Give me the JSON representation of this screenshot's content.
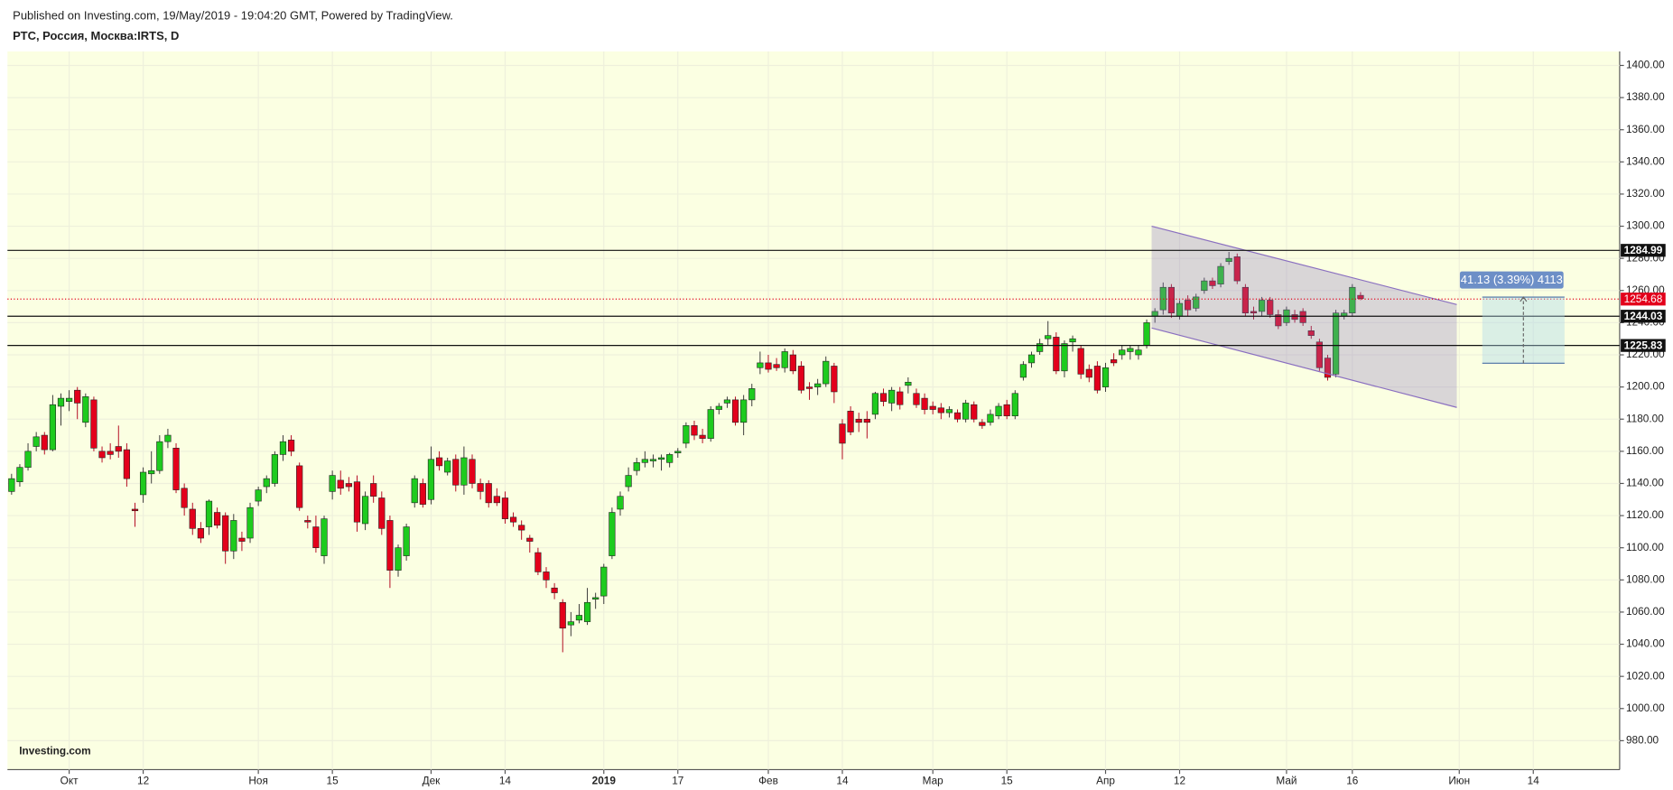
{
  "header": {
    "title": "Published on Investing.com, 19/May/2019 - 19:04:20 GMT, Powered by TradingView.",
    "symbol": "РТС, Россия, Москва:IRTS, D"
  },
  "chart_data": {
    "type": "candlestick",
    "logo": "Investing.com",
    "up_color": "#1ecb1e",
    "down_color": "#e3001b",
    "categories": [
      null,
      null,
      null,
      null,
      null,
      null,
      null,
      "Окт",
      null,
      null,
      null,
      null,
      null,
      null,
      null,
      null,
      "12",
      null,
      null,
      null,
      null,
      null,
      null,
      null,
      null,
      null,
      null,
      null,
      null,
      null,
      "Ноя",
      null,
      null,
      null,
      null,
      null,
      null,
      null,
      null,
      "15",
      null,
      null,
      null,
      null,
      null,
      null,
      null,
      null,
      null,
      null,
      null,
      "Дек",
      null,
      null,
      null,
      null,
      null,
      null,
      null,
      null,
      "14",
      null,
      null,
      null,
      null,
      null,
      null,
      null,
      null,
      null,
      null,
      null,
      "2019",
      null,
      null,
      null,
      null,
      null,
      null,
      null,
      null,
      "17",
      null,
      null,
      null,
      null,
      null,
      null,
      null,
      null,
      null,
      null,
      "Фев",
      null,
      null,
      null,
      null,
      null,
      null,
      null,
      null,
      "14",
      null,
      null,
      null,
      null,
      null,
      null,
      null,
      null,
      null,
      null,
      "Мар",
      null,
      null,
      null,
      null,
      null,
      null,
      null,
      null,
      "15",
      null,
      null,
      null,
      null,
      null,
      null,
      null,
      null,
      null,
      null,
      null,
      "Апр",
      null,
      null,
      null,
      null,
      null,
      null,
      null,
      null,
      "12",
      null,
      null,
      null,
      null,
      null,
      null,
      null,
      null,
      null,
      null,
      null,
      null,
      "Май",
      null,
      null,
      null,
      null,
      null,
      null,
      null,
      "16",
      null,
      null,
      null,
      null,
      null,
      null,
      null,
      null,
      null,
      null,
      null,
      null,
      "Июн",
      null,
      null,
      null,
      null,
      null,
      null,
      null,
      null,
      "14",
      null,
      null,
      null,
      null,
      null,
      null,
      null,
      null,
      null,
      null
    ],
    "open": [
      1135,
      1141,
      1150,
      1163,
      1170,
      1161,
      1188,
      1191,
      1198,
      1178,
      1192,
      1160,
      1160,
      1163,
      1161,
      1124,
      1133,
      1146,
      1148,
      1166,
      1162,
      1137,
      1124,
      1112,
      1113,
      1122,
      1120,
      1098,
      1106,
      1106,
      1129,
      1138,
      1140,
      1158,
      1167,
      1151,
      1117,
      1113,
      1095,
      1135,
      1142,
      1140,
      1141,
      1115,
      1140,
      1131,
      1117,
      1086,
      1095,
      1128,
      1140,
      1130,
      1156,
      1147,
      1155,
      1139,
      1155,
      1140,
      1140,
      1132,
      1131,
      1119,
      1114,
      1106,
      1097,
      1085,
      1075,
      1066,
      1052,
      1055,
      1054,
      1068,
      1070,
      1095,
      1124,
      1138,
      1148,
      1153,
      1154,
      1155,
      1153,
      1159,
      1165,
      1176,
      1170,
      1168,
      1186,
      1190,
      1192,
      1178,
      1192,
      1212,
      1215,
      1214,
      1212,
      1220,
      1213,
      1200,
      1200,
      1202,
      1213,
      1177,
      1185,
      1180,
      1180,
      1183,
      1196,
      1190,
      1197,
      1201,
      1196,
      1193,
      1188,
      1187,
      1184,
      1184,
      1180,
      1189,
      1178,
      1178,
      1182,
      1189,
      1182,
      1206,
      1215,
      1222,
      1230,
      1231,
      1210,
      1228,
      1224,
      1211,
      1213,
      1200,
      1217,
      1220,
      1222,
      1220,
      1226,
      1244,
      1248,
      1262,
      1244,
      1254,
      1249,
      1260,
      1266,
      1264,
      1278,
      1281,
      1262,
      1247,
      1247,
      1254,
      1245,
      1240,
      1245,
      1247,
      1235,
      1228,
      1218,
      1208,
      1244,
      1246,
      1257,
      null,
      null,
      null,
      null,
      null,
      null,
      null,
      null,
      null,
      null,
      null,
      null,
      null,
      null,
      null,
      null,
      null,
      null,
      null,
      null,
      null,
      null,
      null,
      null,
      null,
      null,
      null,
      null,
      null,
      null,
      null
    ],
    "high": [
      1146,
      1152,
      1165,
      1172,
      1172,
      1195,
      1196,
      1198,
      1200,
      1196,
      1194,
      1163,
      1165,
      1176,
      1165,
      1128,
      1150,
      1160,
      1170,
      1174,
      1165,
      1140,
      1128,
      1116,
      1130,
      1125,
      1122,
      1121,
      1110,
      1128,
      1138,
      1145,
      1160,
      1170,
      1170,
      1153,
      1120,
      1120,
      1120,
      1148,
      1148,
      1144,
      1145,
      1135,
      1145,
      1135,
      1120,
      1102,
      1115,
      1145,
      1143,
      1163,
      1160,
      1156,
      1158,
      1163,
      1158,
      1143,
      1142,
      1137,
      1135,
      1122,
      1117,
      1108,
      1100,
      1088,
      1078,
      1068,
      1060,
      1065,
      1075,
      1072,
      1090,
      1125,
      1135,
      1150,
      1156,
      1160,
      1158,
      1158,
      1159,
      1162,
      1178,
      1179,
      1174,
      1188,
      1190,
      1194,
      1194,
      1195,
      1202,
      1222,
      1220,
      1218,
      1224,
      1223,
      1216,
      1203,
      1205,
      1219,
      1215,
      1180,
      1188,
      1184,
      1185,
      1197,
      1199,
      1200,
      1200,
      1206,
      1199,
      1196,
      1191,
      1190,
      1188,
      1186,
      1192,
      1191,
      1180,
      1186,
      1190,
      1192,
      1198,
      1216,
      1222,
      1230,
      1241,
      1234,
      1229,
      1232,
      1226,
      1214,
      1216,
      1215,
      1221,
      1226,
      1226,
      1226,
      1242,
      1249,
      1265,
      1264,
      1254,
      1257,
      1258,
      1268,
      1268,
      1277,
      1284,
      1283,
      1264,
      1250,
      1256,
      1256,
      1248,
      1250,
      1248,
      1249,
      1238,
      1230,
      1220,
      1248,
      1248,
      1264,
      1259,
      null,
      null,
      null,
      null,
      null,
      null,
      null,
      null,
      null,
      null,
      null,
      null,
      null,
      null,
      null,
      null,
      null,
      null,
      null,
      null,
      null,
      null,
      null,
      null,
      null,
      null,
      null,
      null,
      null,
      null,
      null
    ],
    "low": [
      1133,
      1138,
      1148,
      1160,
      1158,
      1160,
      1176,
      1185,
      1180,
      1175,
      1160,
      1153,
      1155,
      1156,
      1138,
      1113,
      1128,
      1140,
      1146,
      1162,
      1134,
      1120,
      1108,
      1103,
      1108,
      1112,
      1090,
      1093,
      1098,
      1103,
      1126,
      1134,
      1138,
      1154,
      1157,
      1123,
      1112,
      1097,
      1090,
      1130,
      1133,
      1135,
      1110,
      1111,
      1128,
      1108,
      1075,
      1082,
      1092,
      1125,
      1125,
      1127,
      1148,
      1145,
      1135,
      1133,
      1137,
      1130,
      1125,
      1126,
      1115,
      1113,
      1105,
      1097,
      1083,
      1075,
      1068,
      1035,
      1045,
      1053,
      1052,
      1062,
      1065,
      1093,
      1120,
      1135,
      1145,
      1150,
      1150,
      1148,
      1150,
      1156,
      1162,
      1167,
      1165,
      1166,
      1183,
      1187,
      1176,
      1170,
      1188,
      1208,
      1209,
      1210,
      1209,
      1208,
      1196,
      1192,
      1195,
      1200,
      1190,
      1155,
      1170,
      1172,
      1168,
      1180,
      1188,
      1185,
      1186,
      1196,
      1187,
      1183,
      1183,
      1180,
      1181,
      1178,
      1178,
      1178,
      1174,
      1176,
      1180,
      1180,
      1180,
      1204,
      1212,
      1220,
      1226,
      1208,
      1206,
      1222,
      1205,
      1203,
      1196,
      1197,
      1213,
      1217,
      1217,
      1217,
      1224,
      1240,
      1245,
      1243,
      1242,
      1244,
      1247,
      1258,
      1261,
      1262,
      1276,
      1264,
      1244,
      1242,
      1244,
      1243,
      1236,
      1238,
      1240,
      1238,
      1230,
      1210,
      1204,
      1206,
      1242,
      1244,
      1254,
      null,
      null,
      null,
      null,
      null,
      null,
      null,
      null,
      null,
      null,
      null,
      null,
      null,
      null,
      null,
      null,
      null,
      null,
      null,
      null,
      null,
      null,
      null,
      null,
      null,
      null,
      null,
      null,
      null,
      null,
      null
    ],
    "close": [
      1143,
      1150,
      1160,
      1169,
      1161,
      1189,
      1193,
      1193,
      1190,
      1194,
      1162,
      1156,
      1158,
      1160,
      1143,
      1123,
      1147,
      1148,
      1166,
      1170,
      1136,
      1125,
      1112,
      1106,
      1129,
      1114,
      1098,
      1117,
      1104,
      1125,
      1136,
      1143,
      1158,
      1166,
      1160,
      1125,
      1116,
      1100,
      1118,
      1145,
      1137,
      1138,
      1116,
      1132,
      1132,
      1112,
      1086,
      1100,
      1113,
      1143,
      1127,
      1155,
      1151,
      1154,
      1139,
      1156,
      1140,
      1135,
      1128,
      1128,
      1118,
      1116,
      1111,
      1104,
      1085,
      1080,
      1072,
      1050,
      1054,
      1058,
      1066,
      1069,
      1088,
      1122,
      1132,
      1145,
      1153,
      1155,
      1155,
      1156,
      1158,
      1160,
      1176,
      1170,
      1168,
      1186,
      1188,
      1192,
      1178,
      1192,
      1199,
      1215,
      1211,
      1212,
      1222,
      1210,
      1198,
      1199,
      1202,
      1216,
      1197,
      1165,
      1172,
      1178,
      1178,
      1196,
      1191,
      1198,
      1189,
      1203,
      1189,
      1186,
      1186,
      1184,
      1186,
      1180,
      1190,
      1180,
      1176,
      1183,
      1188,
      1182,
      1196,
      1214,
      1220,
      1227,
      1232,
      1210,
      1227,
      1230,
      1208,
      1206,
      1198,
      1212,
      1215,
      1223,
      1224,
      1223,
      1240,
      1247,
      1262,
      1246,
      1252,
      1248,
      1256,
      1266,
      1263,
      1275,
      1280,
      1266,
      1246,
      1246,
      1254,
      1245,
      1238,
      1248,
      1242,
      1240,
      1232,
      1212,
      1206,
      1246,
      1246,
      1262,
      1255,
      null,
      null,
      null,
      null,
      null,
      null,
      null,
      null,
      null,
      null,
      null,
      null,
      null,
      null,
      null,
      null,
      null,
      null,
      null,
      null,
      null,
      null,
      null,
      null,
      null,
      null,
      null,
      null,
      null,
      null,
      null
    ],
    "ylim": [
      962,
      1408.7
    ],
    "yticks": [
      {
        "value": 980,
        "label": "980.00"
      },
      {
        "value": 1000,
        "label": "1000.00"
      },
      {
        "value": 1020,
        "label": "1020.00"
      },
      {
        "value": 1040,
        "label": "1040.00"
      },
      {
        "value": 1060,
        "label": "1060.00"
      },
      {
        "value": 1080,
        "label": "1080.00"
      },
      {
        "value": 1100,
        "label": "1100.00"
      },
      {
        "value": 1120,
        "label": "1120.00"
      },
      {
        "value": 1140,
        "label": "1140.00"
      },
      {
        "value": 1160,
        "label": "1160.00"
      },
      {
        "value": 1180,
        "label": "1180.00"
      },
      {
        "value": 1200,
        "label": "1200.00"
      },
      {
        "value": 1220,
        "label": "1220.00"
      },
      {
        "value": 1240,
        "label": "1240.00"
      },
      {
        "value": 1260,
        "label": "1260.00"
      },
      {
        "value": 1280,
        "label": "1280.00"
      },
      {
        "value": 1300,
        "label": "1300.00"
      },
      {
        "value": 1320,
        "label": "1320.00"
      },
      {
        "value": 1340,
        "label": "1340.00"
      },
      {
        "value": 1360,
        "label": "1360.00"
      },
      {
        "value": 1380,
        "label": "1380.00"
      },
      {
        "value": 1400,
        "label": "1400.00"
      }
    ],
    "grid": true,
    "levels": [
      1284.99,
      1244.03,
      1225.83
    ],
    "last_price": 1254.68,
    "channel": {
      "x": [
        138.6,
        175.7
      ],
      "upper": [
        1300,
        1251.3
      ],
      "lower": [
        1236.7,
        1187.3
      ]
    },
    "measure": {
      "x": [
        178.8,
        188.8
      ],
      "top": 1255.9,
      "bottom": 1214.77,
      "label": "41.13 (3.39%) 4113"
    }
  }
}
